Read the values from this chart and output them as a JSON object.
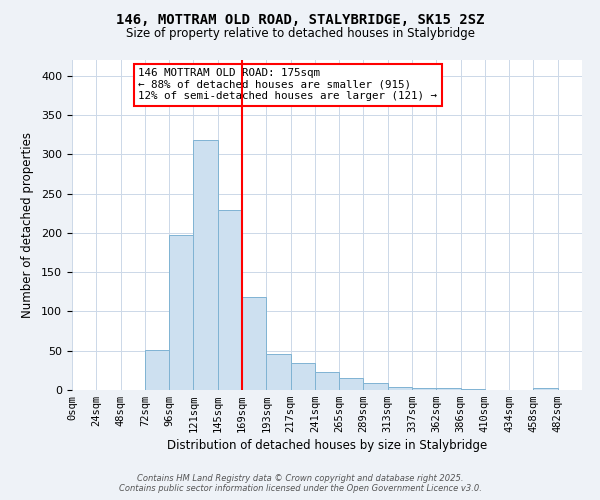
{
  "title": "146, MOTTRAM OLD ROAD, STALYBRIDGE, SK15 2SZ",
  "subtitle": "Size of property relative to detached houses in Stalybridge",
  "xlabel": "Distribution of detached houses by size in Stalybridge",
  "ylabel": "Number of detached properties",
  "bar_color": "#cde0f0",
  "bar_edge_color": "#7fb3d3",
  "bin_edges": [
    0,
    24,
    48,
    72,
    96,
    120,
    144,
    168,
    192,
    216,
    240,
    264,
    288,
    312,
    336,
    360,
    384,
    408,
    432,
    456,
    480,
    504
  ],
  "bin_labels": [
    "0sqm",
    "24sqm",
    "48sqm",
    "72sqm",
    "96sqm",
    "121sqm",
    "145sqm",
    "169sqm",
    "193sqm",
    "217sqm",
    "241sqm",
    "265sqm",
    "289sqm",
    "313sqm",
    "337sqm",
    "362sqm",
    "386sqm",
    "410sqm",
    "434sqm",
    "458sqm",
    "482sqm"
  ],
  "bar_heights": [
    0,
    0,
    0,
    51,
    197,
    318,
    229,
    118,
    46,
    34,
    23,
    15,
    9,
    4,
    3,
    2,
    1,
    0,
    0,
    2,
    0
  ],
  "ylim": [
    0,
    420
  ],
  "yticks": [
    0,
    50,
    100,
    150,
    200,
    250,
    300,
    350,
    400
  ],
  "vline_x": 168,
  "annotation_title": "146 MOTTRAM OLD ROAD: 175sqm",
  "annotation_line1": "← 88% of detached houses are smaller (915)",
  "annotation_line2": "12% of semi-detached houses are larger (121) →",
  "footer1": "Contains HM Land Registry data © Crown copyright and database right 2025.",
  "footer2": "Contains public sector information licensed under the Open Government Licence v3.0.",
  "bg_color": "#eef2f7",
  "plot_bg_color": "#ffffff",
  "grid_color": "#ccd8e8"
}
